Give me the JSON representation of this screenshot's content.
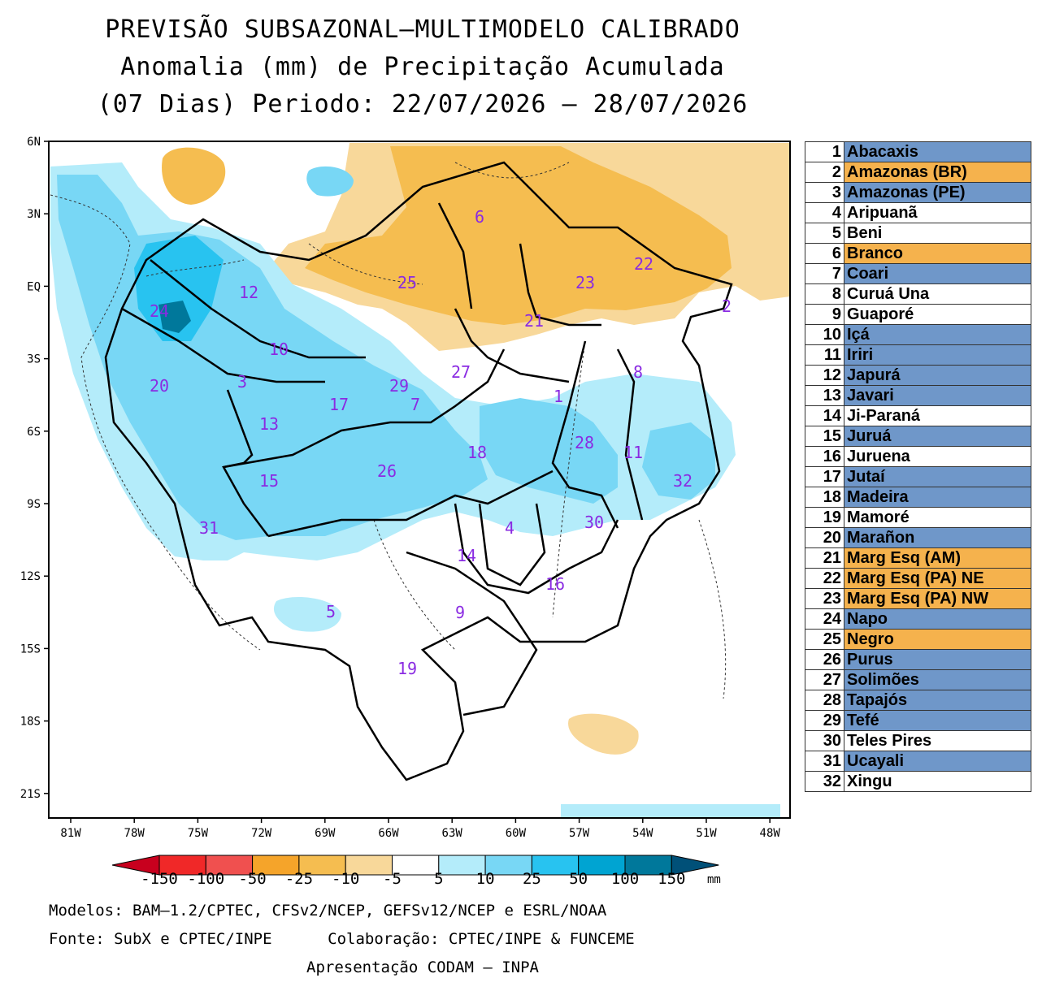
{
  "title": {
    "line1": "PREVISÃO SUBSAZONAL—MULTIMODELO CALIBRADO",
    "line2": "Anomalia (mm) de Precipitação Acumulada",
    "line3": "(07 Dias) Periodo: 22/07/2026 — 28/07/2026"
  },
  "axes": {
    "lat_labels": [
      "6N",
      "3N",
      "EQ",
      "3S",
      "6S",
      "9S",
      "12S",
      "15S",
      "18S",
      "21S"
    ],
    "lon_labels": [
      "81W",
      "78W",
      "75W",
      "72W",
      "69W",
      "66W",
      "63W",
      "60W",
      "57W",
      "54W",
      "51W",
      "48W"
    ]
  },
  "colorbar": {
    "labels": [
      "-150",
      "-100",
      "-50",
      "-25",
      "-10",
      "-5",
      "5",
      "10",
      "25",
      "50",
      "100",
      "150"
    ],
    "unit": "mm",
    "colors": [
      "#c8001e",
      "#f02828",
      "#f0504f",
      "#f5a42a",
      "#f5bd50",
      "#f8d89a",
      "#ffffff",
      "#b4ecfa",
      "#78d7f5",
      "#28c3f0",
      "#00a4d2",
      "#00789b",
      "#005078"
    ]
  },
  "basin_markers": [
    "1",
    "2",
    "3",
    "4",
    "5",
    "6",
    "7",
    "8",
    "9",
    "10",
    "11",
    "12",
    "13",
    "14",
    "15",
    "16",
    "17",
    "18",
    "19",
    "20",
    "21",
    "22",
    "23",
    "24",
    "25",
    "26",
    "27",
    "28",
    "29",
    "30",
    "31",
    "32"
  ],
  "basins": [
    {
      "n": "1",
      "name": "Abacaxis",
      "anomaly": "positive"
    },
    {
      "n": "2",
      "name": "Amazonas (BR)",
      "anomaly": "negative"
    },
    {
      "n": "3",
      "name": "Amazonas (PE)",
      "anomaly": "positive"
    },
    {
      "n": "4",
      "name": "Aripuanã",
      "anomaly": "neutral"
    },
    {
      "n": "5",
      "name": "Beni",
      "anomaly": "neutral"
    },
    {
      "n": "6",
      "name": "Branco",
      "anomaly": "negative"
    },
    {
      "n": "7",
      "name": "Coari",
      "anomaly": "positive"
    },
    {
      "n": "8",
      "name": "Curuá Una",
      "anomaly": "neutral"
    },
    {
      "n": "9",
      "name": "Guaporé",
      "anomaly": "neutral"
    },
    {
      "n": "10",
      "name": "Içá",
      "anomaly": "positive"
    },
    {
      "n": "11",
      "name": "Iriri",
      "anomaly": "positive"
    },
    {
      "n": "12",
      "name": "Japurá",
      "anomaly": "positive"
    },
    {
      "n": "13",
      "name": "Javari",
      "anomaly": "positive"
    },
    {
      "n": "14",
      "name": "Ji-Paraná",
      "anomaly": "neutral"
    },
    {
      "n": "15",
      "name": "Juruá",
      "anomaly": "positive"
    },
    {
      "n": "16",
      "name": "Juruena",
      "anomaly": "neutral"
    },
    {
      "n": "17",
      "name": "Jutaí",
      "anomaly": "positive"
    },
    {
      "n": "18",
      "name": "Madeira",
      "anomaly": "positive"
    },
    {
      "n": "19",
      "name": "Mamoré",
      "anomaly": "neutral"
    },
    {
      "n": "20",
      "name": "Marañon",
      "anomaly": "positive"
    },
    {
      "n": "21",
      "name": "Marg Esq (AM)",
      "anomaly": "negative"
    },
    {
      "n": "22",
      "name": "Marg Esq (PA) NE",
      "anomaly": "negative"
    },
    {
      "n": "23",
      "name": "Marg Esq (PA) NW",
      "anomaly": "negative"
    },
    {
      "n": "24",
      "name": "Napo",
      "anomaly": "positive"
    },
    {
      "n": "25",
      "name": "Negro",
      "anomaly": "negative"
    },
    {
      "n": "26",
      "name": "Purus",
      "anomaly": "positive"
    },
    {
      "n": "27",
      "name": "Solimões",
      "anomaly": "positive"
    },
    {
      "n": "28",
      "name": "Tapajós",
      "anomaly": "positive"
    },
    {
      "n": "29",
      "name": "Tefé",
      "anomaly": "positive"
    },
    {
      "n": "30",
      "name": "Teles Pires",
      "anomaly": "neutral"
    },
    {
      "n": "31",
      "name": "Ucayali",
      "anomaly": "positive"
    },
    {
      "n": "32",
      "name": "Xingu",
      "anomaly": "neutral"
    }
  ],
  "anomaly_colors": {
    "positive": "#6f97c9",
    "negative": "#f5b24d",
    "neutral": "#ffffff"
  },
  "footer": {
    "models": "Modelos: BAM—1.2/CPTEC, CFSv2/NCEP, GEFSv12/NCEP e ESRL/NOAA",
    "source": "Fonte: SubX e CPTEC/INPE      Colaboração: CPTEC/INPE & FUNCEME",
    "presentation": "Apresentação CODAM — INPA"
  }
}
